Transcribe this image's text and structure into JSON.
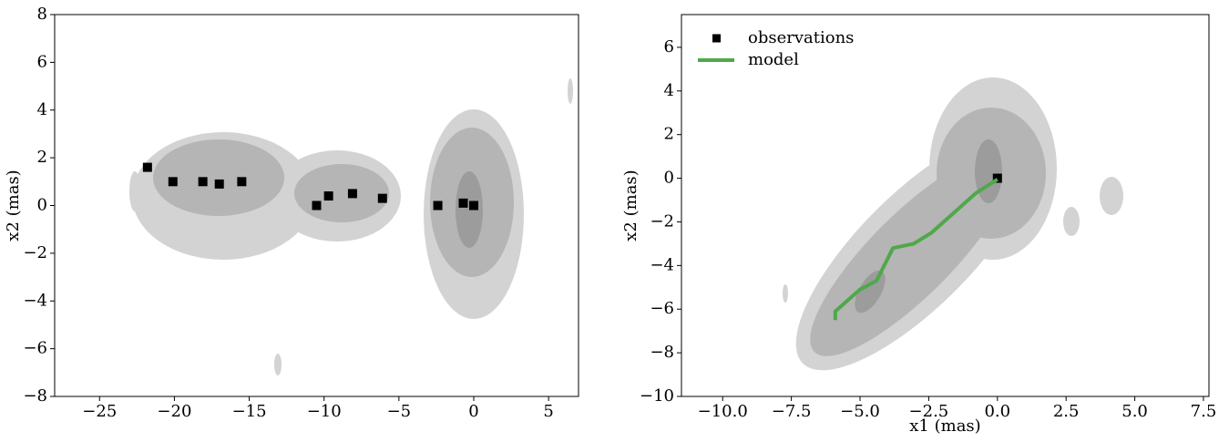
{
  "chart_data": [
    {
      "type": "scatter",
      "ylabel": "x2 (mas)",
      "xlim": [
        -28,
        7
      ],
      "ylim": [
        -8,
        8
      ],
      "xticks": [
        {
          "value": -25,
          "label": "−25"
        },
        {
          "value": -20,
          "label": "−20"
        },
        {
          "value": -15,
          "label": "−15"
        },
        {
          "value": -10,
          "label": "−10"
        },
        {
          "value": -5,
          "label": "−5"
        },
        0,
        5
      ],
      "yticks": [
        {
          "value": -8,
          "label": "−8"
        },
        {
          "value": -6,
          "label": "−6"
        },
        {
          "value": -4,
          "label": "−4"
        },
        {
          "value": -2,
          "label": "−2"
        },
        0,
        2,
        4,
        6,
        8
      ],
      "series": [
        {
          "color": "#000000",
          "x": [
            -21.8,
            -20.1,
            -18.1,
            -17.0,
            -15.5,
            -10.5,
            -9.7,
            -8.1,
            -6.1,
            -2.4,
            -0.7,
            0.0
          ],
          "values": [
            1.6,
            1.0,
            1.0,
            0.9,
            1.0,
            0.0,
            0.4,
            0.5,
            0.3,
            0.0,
            0.1,
            0.0
          ]
        }
      ]
    },
    {
      "type": "line",
      "xlabel": "x1 (mas)",
      "ylabel": "x2 (mas)",
      "legend": "upper left",
      "xlim": [
        -11.5,
        7.7
      ],
      "ylim": [
        -10,
        7.5
      ],
      "xticks": [
        {
          "value": -10,
          "label": "−10.0"
        },
        {
          "value": -7.5,
          "label": "−7.5"
        },
        {
          "value": -5,
          "label": "−5.0"
        },
        {
          "value": -2.5,
          "label": "−2.5"
        },
        {
          "value": 0,
          "label": "0.0"
        },
        2.5,
        {
          "value": 5,
          "label": "5.0"
        },
        7.5
      ],
      "yticks": [
        {
          "value": -10,
          "label": "−10"
        },
        {
          "value": -8,
          "label": "−8"
        },
        {
          "value": -6,
          "label": "−6"
        },
        {
          "value": -4,
          "label": "−4"
        },
        {
          "value": -2,
          "label": "−2"
        },
        0,
        2,
        4,
        6
      ],
      "series": [
        {
          "name": "observations",
          "type": "scatter",
          "color": "#000000",
          "x": [
            0.0
          ],
          "values": [
            0.0
          ]
        },
        {
          "name": "model",
          "type": "line",
          "color": "#4fa84a",
          "x": [
            -5.9,
            -5.9,
            -5.0,
            -4.4,
            -3.8,
            -3.05,
            -2.4,
            -0.8,
            0.0
          ],
          "values": [
            -6.5,
            -6.1,
            -5.1,
            -4.7,
            -3.2,
            -3.0,
            -2.5,
            -0.7,
            -0.05
          ]
        }
      ]
    }
  ]
}
